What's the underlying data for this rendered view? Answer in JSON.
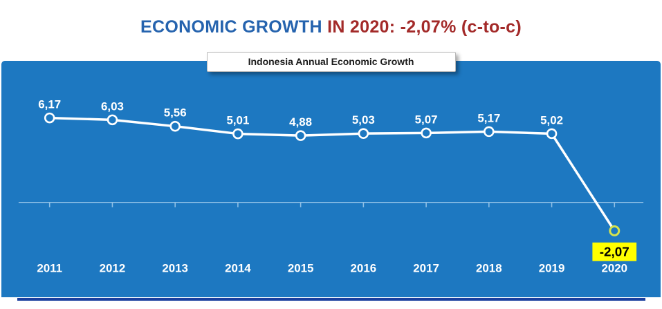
{
  "title": {
    "part1": "ECONOMIC GROWTH ",
    "part2": "IN 2020: -2,07% (c-to-c)"
  },
  "colors": {
    "panel_bg": "#1d78c1",
    "title_blue": "#2563ae",
    "title_red": "#a32a29",
    "axis_line": "#8fc0e6",
    "bottom_line": "#1a3f9e",
    "highlight_bg": "#ffff00",
    "line_color": "#ffffff",
    "highlight_marker": "#d6e34d"
  },
  "chart_data": {
    "type": "line",
    "title": "Indonesia Annual Economic Growth",
    "categories": [
      "2011",
      "2012",
      "2013",
      "2014",
      "2015",
      "2016",
      "2017",
      "2018",
      "2019",
      "2020"
    ],
    "values": [
      6.17,
      6.03,
      5.56,
      5.01,
      4.88,
      5.03,
      5.07,
      5.17,
      5.02,
      -2.07
    ],
    "value_labels": [
      "6,17",
      "6,03",
      "5,56",
      "5,01",
      "4,88",
      "5,03",
      "5,07",
      "5,17",
      "5,02",
      "-2,07"
    ],
    "xlabel": "",
    "ylabel": "",
    "ylim": [
      -3.5,
      7.5
    ],
    "grid": false,
    "legend": false,
    "marker_style": "open-circle",
    "highlight_last": {
      "label": "-2,07",
      "label_bg": "#ffff00",
      "label_color": "#000000",
      "marker_color": "#d6e34d"
    }
  }
}
